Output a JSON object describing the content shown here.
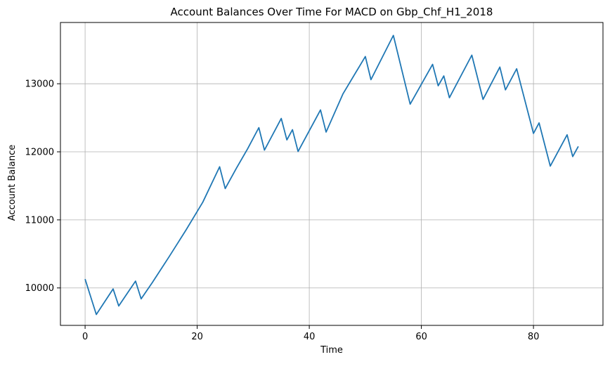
{
  "chart_data": {
    "type": "line",
    "title": "Account Balances Over Time For MACD on Gbp_Chf_H1_2018",
    "xlabel": "Time",
    "ylabel": "Account Balance",
    "xlim": [
      -4.4,
      92.4
    ],
    "ylim": [
      9450,
      13900
    ],
    "xticks": [
      0,
      20,
      40,
      60,
      80
    ],
    "yticks": [
      10000,
      11000,
      12000,
      13000
    ],
    "grid": true,
    "legend": "none",
    "series": [
      {
        "color": "#1f77b4",
        "x": [
          0,
          2,
          5,
          6,
          9,
          10,
          12,
          15,
          18,
          21,
          24,
          25,
          27,
          29,
          31,
          32,
          35,
          36,
          37,
          38,
          42,
          43,
          46,
          50,
          51,
          55,
          58,
          62,
          63,
          64,
          65,
          69,
          71,
          74,
          75,
          77,
          80,
          81,
          83,
          86,
          87,
          88
        ],
        "y": [
          10130,
          9610,
          9985,
          9735,
          10100,
          9840,
          10080,
          10460,
          10850,
          11260,
          11780,
          11460,
          11760,
          12045,
          12355,
          12025,
          12490,
          12175,
          12325,
          12005,
          12615,
          12290,
          12850,
          13400,
          13060,
          13710,
          12700,
          13285,
          12970,
          13115,
          12795,
          13420,
          12770,
          13245,
          12910,
          13220,
          12270,
          12425,
          11790,
          12250,
          11930,
          12080
        ]
      }
    ]
  }
}
